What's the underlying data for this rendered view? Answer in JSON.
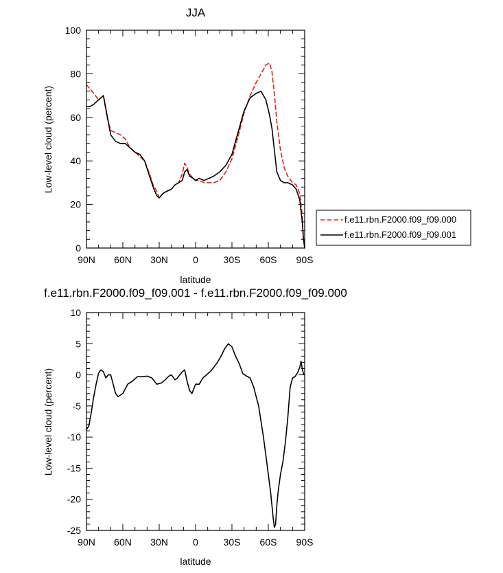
{
  "chart_data": [
    {
      "type": "line",
      "title": "JJA",
      "xlabel": "latitude",
      "ylabel": "Low-level cloud (percent)",
      "xlim": [
        90,
        -90
      ],
      "ylim": [
        0,
        100
      ],
      "x_ticks": [
        90,
        60,
        30,
        0,
        -30,
        -60,
        -90
      ],
      "x_tick_labels": [
        "90N",
        "60N",
        "30N",
        "0",
        "30S",
        "60S",
        "90S"
      ],
      "y_ticks": [
        0,
        20,
        40,
        60,
        80,
        100
      ],
      "legend_position": "right",
      "series": [
        {
          "name": "f.e11.rbn.F2000.f09_f09.000",
          "color": "#e0201b",
          "dash": "dashed",
          "x": [
            90,
            87,
            84,
            80,
            76,
            73,
            70,
            66,
            62,
            58,
            54,
            50,
            46,
            42,
            38,
            35,
            32,
            30,
            27,
            24,
            20,
            17,
            14,
            11,
            9,
            7,
            5,
            2,
            0,
            -3,
            -7,
            -11,
            -15,
            -20,
            -25,
            -30,
            -35,
            -40,
            -45,
            -50,
            -54,
            -58,
            -61,
            -63,
            -65,
            -67,
            -70,
            -73,
            -76,
            -80,
            -83,
            -86,
            -88,
            -89,
            -90
          ],
          "values": [
            75,
            73,
            71,
            68,
            70,
            60,
            54,
            53,
            52,
            50,
            46,
            44,
            42,
            40,
            34,
            29,
            26,
            23,
            25,
            26,
            27,
            29,
            30,
            34,
            39,
            37,
            34,
            32,
            31,
            31,
            30,
            30,
            30,
            31,
            35,
            41,
            51,
            62,
            70,
            76,
            80,
            84,
            85,
            81,
            71,
            58,
            45,
            37,
            33,
            30,
            29,
            25,
            15,
            5,
            0
          ]
        },
        {
          "name": "f.e11.rbn.F2000.f09_f09.001",
          "color": "#000000",
          "dash": "solid",
          "x": [
            90,
            87,
            84,
            80,
            76,
            73,
            70,
            66,
            62,
            58,
            54,
            50,
            46,
            42,
            38,
            35,
            32,
            30,
            27,
            24,
            20,
            17,
            14,
            11,
            9,
            7,
            5,
            2,
            0,
            -3,
            -7,
            -11,
            -15,
            -20,
            -25,
            -30,
            -35,
            -40,
            -45,
            -50,
            -54,
            -58,
            -61,
            -63,
            -65,
            -67,
            -70,
            -73,
            -76,
            -80,
            -83,
            -86,
            -88,
            -89,
            -90
          ],
          "values": [
            65,
            65,
            66,
            68,
            70,
            61,
            52,
            49,
            48,
            48,
            46,
            44,
            43,
            40,
            33,
            28,
            24,
            23,
            25,
            26,
            27,
            29,
            30,
            31,
            35,
            36,
            33,
            32,
            31,
            32,
            31,
            32,
            33,
            35,
            38,
            43,
            53,
            63,
            69,
            71,
            72,
            68,
            61,
            55,
            45,
            35,
            31,
            30,
            30,
            29,
            27,
            22,
            12,
            4,
            0
          ]
        }
      ]
    },
    {
      "type": "line",
      "title": "f.e11.rbn.F2000.f09_f09.001 - f.e11.rbn.F2000.f09_f09.000",
      "xlabel": "latitude",
      "ylabel": "Low-level cloud (percent)",
      "xlim": [
        90,
        -90
      ],
      "ylim": [
        -25,
        10
      ],
      "x_ticks": [
        90,
        60,
        30,
        0,
        -30,
        -60,
        -90
      ],
      "x_tick_labels": [
        "90N",
        "60N",
        "30N",
        "0",
        "30S",
        "60S",
        "90S"
      ],
      "y_ticks": [
        -25,
        -20,
        -15,
        -10,
        -5,
        0,
        5,
        10
      ],
      "series": [
        {
          "color": "#000000",
          "dash": "solid",
          "x": [
            90,
            88,
            86,
            84,
            82,
            80,
            78,
            76,
            74,
            72,
            70,
            68,
            66,
            64,
            60,
            56,
            52,
            48,
            44,
            40,
            36,
            32,
            28,
            25,
            22,
            20,
            17,
            15,
            13,
            11,
            9,
            7,
            5,
            3,
            0,
            -3,
            -6,
            -9,
            -12,
            -15,
            -18,
            -21,
            -24,
            -27,
            -30,
            -33,
            -36,
            -39,
            -42,
            -45,
            -48,
            -50,
            -52,
            -54,
            -56,
            -58,
            -60,
            -62,
            -63,
            -64,
            -65,
            -66,
            -67,
            -68,
            -70,
            -72,
            -74,
            -76,
            -78,
            -80,
            -82,
            -84,
            -86,
            -87,
            -88,
            -89,
            -90
          ],
          "values": [
            -8.8,
            -8.2,
            -6,
            -3.5,
            -1.5,
            0.3,
            0.8,
            0.5,
            -0.5,
            0,
            0,
            -1.5,
            -3,
            -3.5,
            -3,
            -1.5,
            -1,
            -0.3,
            -0.3,
            -0.2,
            -0.5,
            -1.5,
            -1.3,
            -0.8,
            -0.2,
            0,
            -0.8,
            -0.5,
            0,
            0.5,
            0.8,
            -1,
            -2.5,
            -3,
            -1.5,
            -1.5,
            -0.5,
            0,
            0.5,
            1.2,
            2,
            3,
            4.2,
            5,
            4.5,
            3,
            1.8,
            0.2,
            -0.2,
            -0.5,
            -2,
            -3.5,
            -5,
            -7.5,
            -10,
            -13,
            -16,
            -19,
            -21,
            -23,
            -24.5,
            -24,
            -21,
            -19,
            -16,
            -14,
            -11,
            -7,
            -2,
            -0.5,
            -0.3,
            0.3,
            1.2,
            2.2,
            1,
            0.2,
            0
          ]
        }
      ]
    }
  ]
}
